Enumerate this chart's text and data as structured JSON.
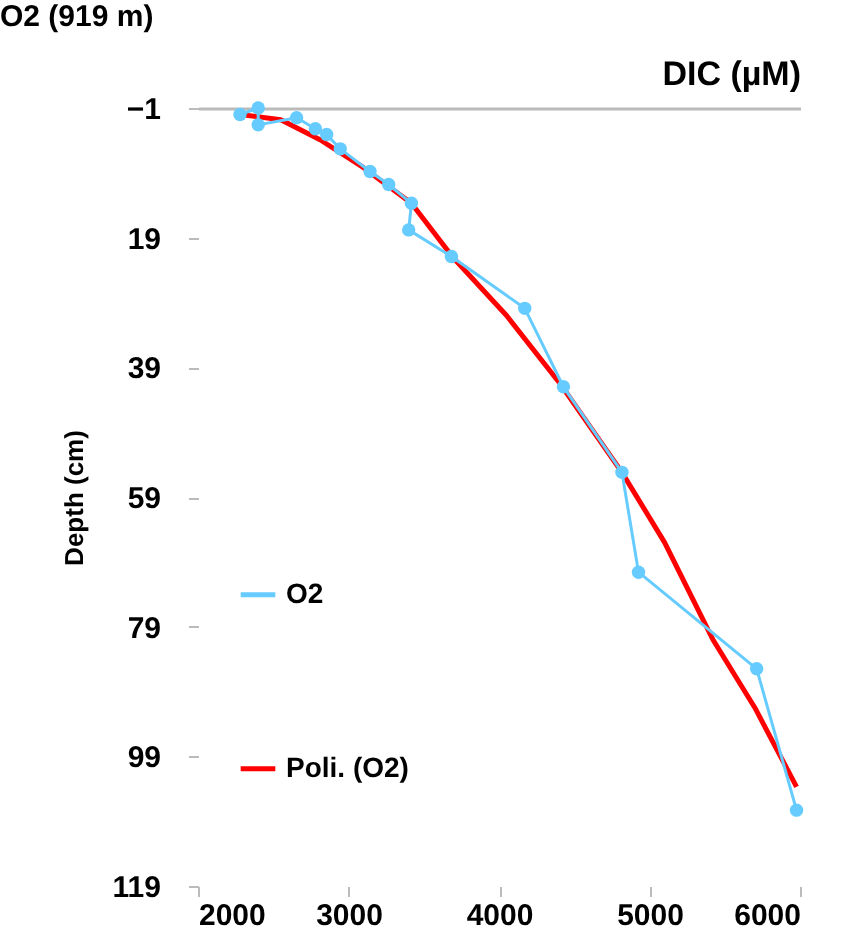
{
  "chart_data": {
    "type": "line",
    "title": "O2 (919 m)",
    "xlabel": "DIC (µM)",
    "ylabel": "Depth (cm)",
    "xlim": [
      2000,
      6000
    ],
    "xticks": [
      2000,
      3000,
      4000,
      5000,
      6000
    ],
    "ylim": [
      119,
      -1
    ],
    "yticks": [
      -1,
      19,
      39,
      59,
      79,
      99,
      119
    ],
    "grid": false,
    "legend": "left",
    "series": [
      {
        "name": "O2",
        "color": "#66ccff",
        "marker": "circle",
        "x": [
          2279,
          2400,
          2400,
          2655,
          2780,
          2855,
          2945,
          3143,
          3267,
          3418,
          3400,
          3684,
          4171,
          4428,
          4817,
          4927,
          5712,
          5977
        ],
        "values": [
          0,
          -1,
          1.6,
          0.5,
          2.2,
          3.1,
          5.3,
          8.8,
          10.8,
          13.7,
          17.8,
          21.9,
          29.9,
          42,
          55.2,
          70.6,
          85.5,
          107.3
        ]
      },
      {
        "name": "Poli. (O2)",
        "type": "line",
        "color": "#ff0000",
        "marker": "none",
        "x": [
          2279,
          2550,
          2811,
          3100,
          3418,
          3696,
          4050,
          4405,
          4817,
          5100,
          5424,
          5700,
          5977
        ],
        "values": [
          0,
          0.8,
          3.9,
          8.2,
          13.7,
          22.1,
          31,
          41.5,
          55.2,
          66,
          81.1,
          91.5,
          103.7
        ]
      }
    ]
  }
}
